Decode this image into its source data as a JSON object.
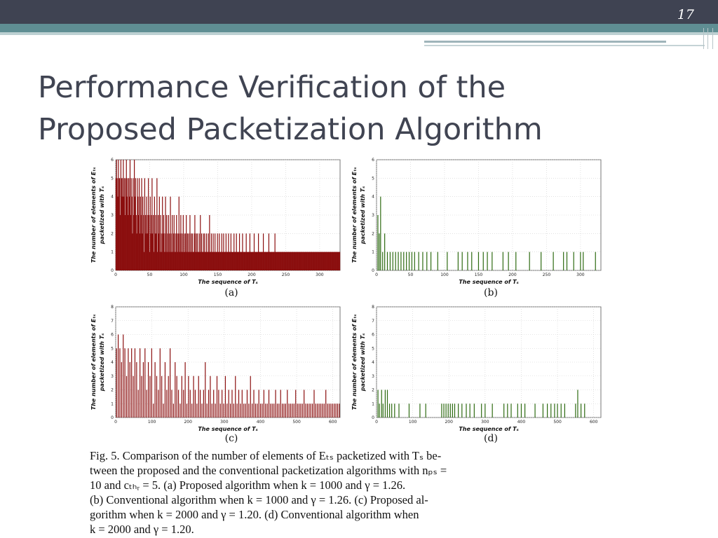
{
  "slide": {
    "number": "17",
    "title_line1": "Performance Verification of the",
    "title_line2": "Proposed Packetization Algorithm"
  },
  "figure": {
    "caption_lines": [
      "Fig. 5.   Comparison of the number of elements of Eₜₛ packetized with Tₛ be-",
      "tween the proposed and the conventional packetization algorithms with nₚₛ =",
      "10 and cₜₕᵣ = 5. (a) Proposed algorithm when k = 1000 and γ = 1.26.",
      "(b) Conventional algorithm when k = 1000 and γ = 1.26. (c) Proposed al-",
      "gorithm when k = 2000 and γ = 1.20. (d) Conventional algorithm when",
      "k = 2000 and γ = 1.20."
    ]
  },
  "chart_data": [
    {
      "type": "bar",
      "panel_label": "(a)",
      "xlabel": "The sequence of Tₛ",
      "ylabel_line1": "The number of elements of Eₜₛ",
      "ylabel_line2": "packetized with Tₛ",
      "xlim": [
        0,
        330
      ],
      "ylim": [
        0,
        6
      ],
      "xticks": [
        0,
        50,
        100,
        150,
        200,
        250,
        300
      ],
      "yticks": [
        0,
        1,
        2,
        3,
        4,
        5,
        6
      ],
      "grid": true,
      "color": "#8b0f0f",
      "values": [
        5,
        6,
        5,
        4,
        6,
        5,
        5,
        3,
        6,
        5,
        4,
        5,
        6,
        4,
        5,
        3,
        5,
        6,
        4,
        5,
        3,
        5,
        4,
        6,
        3,
        5,
        4,
        2,
        5,
        3,
        6,
        4,
        5,
        3,
        2,
        5,
        4,
        3,
        5,
        2,
        4,
        3,
        5,
        2,
        4,
        3,
        1,
        5,
        3,
        2,
        4,
        3,
        2,
        5,
        3,
        1,
        4,
        2,
        3,
        5,
        2,
        3,
        1,
        4,
        2,
        3,
        2,
        5,
        1,
        3,
        2,
        4,
        1,
        3,
        2,
        1,
        4,
        2,
        3,
        1,
        2,
        4,
        1,
        3,
        2,
        1,
        3,
        2,
        1,
        4,
        2,
        1,
        3,
        1,
        2,
        3,
        1,
        2,
        1,
        3,
        2,
        1,
        2,
        4,
        1,
        2,
        3,
        1,
        2,
        1,
        3,
        1,
        2,
        1,
        2,
        3,
        1,
        2,
        1,
        2,
        1,
        3,
        1,
        2,
        1,
        2,
        1,
        1,
        2,
        3,
        1,
        2,
        1,
        2,
        1,
        1,
        2,
        1,
        3,
        1,
        2,
        1,
        1,
        2,
        1,
        2,
        1,
        1,
        2,
        1,
        1,
        2,
        1,
        3,
        1,
        1,
        2,
        1,
        1,
        2,
        1,
        1,
        2,
        1,
        1,
        1,
        2,
        1,
        1,
        2,
        1,
        1,
        1,
        2,
        1,
        1,
        2,
        1,
        1,
        1,
        2,
        1,
        1,
        1,
        2,
        1,
        1,
        1,
        2,
        1,
        1,
        1,
        1,
        2,
        1,
        1,
        1,
        2,
        1,
        1,
        1,
        1,
        2,
        1,
        1,
        1,
        1,
        2,
        1,
        1,
        1,
        1,
        1,
        2,
        1,
        1,
        1,
        1,
        1,
        2,
        1,
        1,
        1,
        1,
        1,
        1,
        2,
        1,
        1,
        1,
        1,
        1,
        1,
        2,
        1,
        1,
        1,
        1,
        1,
        1,
        1,
        2,
        1,
        1,
        1,
        1,
        1,
        1,
        1,
        1,
        2,
        1,
        1,
        1,
        1,
        1,
        1,
        1,
        1,
        1,
        2,
        1,
        1,
        1,
        1,
        1,
        1,
        1,
        1,
        1,
        1,
        1,
        1,
        1,
        1,
        1,
        1,
        1,
        1,
        1,
        1,
        1,
        1,
        1,
        1,
        1,
        1,
        1,
        1,
        1,
        1,
        1,
        1,
        1,
        1,
        1,
        1,
        1,
        1,
        1,
        1,
        1,
        1,
        1,
        1,
        1,
        1,
        1,
        1,
        1,
        1,
        1,
        1,
        1,
        1,
        1,
        1,
        1,
        1,
        1,
        1,
        1,
        1,
        1,
        1,
        1,
        1,
        1,
        1,
        1,
        1,
        1,
        1,
        1,
        1,
        1,
        1,
        1,
        1,
        1,
        1,
        1,
        1,
        1,
        1,
        1,
        1,
        1,
        1,
        1,
        1,
        1,
        1,
        1,
        1,
        1,
        1,
        1,
        1,
        1,
        1,
        1,
        1,
        1,
        1,
        1,
        1
      ]
    },
    {
      "type": "bar",
      "panel_label": "(b)",
      "xlabel": "The sequence of Tₛ",
      "ylabel_line1": "The number of elements of Eₜₛ",
      "ylabel_line2": "packetized with Tₛ",
      "xlim": [
        0,
        330
      ],
      "ylim": [
        0,
        6
      ],
      "xticks": [
        0,
        50,
        100,
        150,
        200,
        250,
        300
      ],
      "yticks": [
        0,
        1,
        2,
        3,
        4,
        5,
        6
      ],
      "grid": true,
      "color": "#2e6b12",
      "points": [
        [
          2,
          3
        ],
        [
          4,
          2
        ],
        [
          6,
          4
        ],
        [
          9,
          1
        ],
        [
          12,
          2
        ],
        [
          16,
          1
        ],
        [
          20,
          1
        ],
        [
          24,
          1
        ],
        [
          28,
          1
        ],
        [
          32,
          1
        ],
        [
          36,
          1
        ],
        [
          40,
          1
        ],
        [
          44,
          1
        ],
        [
          48,
          1
        ],
        [
          52,
          1
        ],
        [
          56,
          1
        ],
        [
          62,
          1
        ],
        [
          68,
          1
        ],
        [
          74,
          1
        ],
        [
          80,
          1
        ],
        [
          90,
          1
        ],
        [
          104,
          1
        ],
        [
          120,
          1
        ],
        [
          126,
          1
        ],
        [
          134,
          1
        ],
        [
          140,
          1
        ],
        [
          150,
          1
        ],
        [
          157,
          1
        ],
        [
          163,
          1
        ],
        [
          170,
          1
        ],
        [
          186,
          1
        ],
        [
          194,
          1
        ],
        [
          205,
          1
        ],
        [
          225,
          1
        ],
        [
          242,
          1
        ],
        [
          260,
          1
        ],
        [
          275,
          1
        ],
        [
          280,
          1
        ],
        [
          290,
          1
        ],
        [
          300,
          1
        ],
        [
          304,
          1
        ],
        [
          322,
          1
        ]
      ]
    },
    {
      "type": "bar",
      "panel_label": "(c)",
      "xlabel": "The sequence of Tₛ",
      "ylabel_line1": "The number of elements of Eₜₛ",
      "ylabel_line2": "packetized with Tₛ",
      "xlim": [
        0,
        620
      ],
      "ylim": [
        0,
        8
      ],
      "xticks": [
        0,
        100,
        200,
        300,
        400,
        500,
        600
      ],
      "yticks": [
        0,
        1,
        2,
        3,
        4,
        5,
        6,
        7,
        8
      ],
      "grid": true,
      "color": "#8b0f0f",
      "values": [
        5,
        6,
        5,
        4,
        6,
        5,
        3,
        5,
        4,
        5,
        3,
        5,
        4,
        2,
        5,
        3,
        4,
        5,
        2,
        4,
        3,
        5,
        1,
        4,
        3,
        2,
        5,
        3,
        1,
        4,
        2,
        3,
        5,
        2,
        1,
        4,
        3,
        2,
        1,
        3,
        2,
        4,
        1,
        3,
        2,
        1,
        3,
        2,
        1,
        3,
        2,
        1,
        2,
        4,
        1,
        2,
        3,
        1,
        2,
        1,
        3,
        2,
        1,
        2,
        1,
        3,
        1,
        2,
        1,
        2,
        1,
        3,
        1,
        2,
        1,
        2,
        1,
        1,
        2,
        1,
        3,
        1,
        2,
        1,
        1,
        2,
        1,
        1,
        2,
        1,
        1,
        2,
        1,
        1,
        1,
        2,
        1,
        1,
        2,
        1,
        1,
        1,
        2,
        1,
        1,
        1,
        1,
        2,
        1,
        1,
        1,
        1,
        2,
        1,
        1,
        1,
        1,
        1,
        2,
        1,
        1,
        1,
        1,
        1,
        1,
        2,
        1,
        1,
        1,
        1,
        1,
        1,
        1,
        1
      ]
    },
    {
      "type": "bar",
      "panel_label": "(d)",
      "xlabel": "The sequence of Tₛ",
      "ylabel_line1": "The number of elements of Eₜₛ",
      "ylabel_line2": "packetized with Tₛ",
      "xlim": [
        0,
        620
      ],
      "ylim": [
        0,
        8
      ],
      "xticks": [
        0,
        100,
        200,
        300,
        400,
        500,
        600
      ],
      "yticks": [
        0,
        1,
        2,
        3,
        4,
        5,
        6,
        7,
        8
      ],
      "grid": true,
      "color": "#2e6b12",
      "points": [
        [
          4,
          2
        ],
        [
          8,
          1
        ],
        [
          14,
          2
        ],
        [
          18,
          1
        ],
        [
          24,
          2
        ],
        [
          30,
          2
        ],
        [
          36,
          1
        ],
        [
          42,
          1
        ],
        [
          50,
          1
        ],
        [
          62,
          1
        ],
        [
          90,
          1
        ],
        [
          120,
          1
        ],
        [
          136,
          1
        ],
        [
          180,
          1
        ],
        [
          186,
          1
        ],
        [
          192,
          1
        ],
        [
          198,
          1
        ],
        [
          204,
          1
        ],
        [
          210,
          1
        ],
        [
          216,
          1
        ],
        [
          226,
          1
        ],
        [
          236,
          1
        ],
        [
          248,
          1
        ],
        [
          258,
          1
        ],
        [
          270,
          1
        ],
        [
          290,
          1
        ],
        [
          300,
          1
        ],
        [
          320,
          1
        ],
        [
          352,
          1
        ],
        [
          362,
          1
        ],
        [
          372,
          1
        ],
        [
          390,
          1
        ],
        [
          400,
          1
        ],
        [
          410,
          1
        ],
        [
          438,
          1
        ],
        [
          460,
          1
        ],
        [
          472,
          1
        ],
        [
          482,
          1
        ],
        [
          492,
          1
        ],
        [
          500,
          1
        ],
        [
          510,
          1
        ],
        [
          520,
          1
        ],
        [
          550,
          1
        ],
        [
          556,
          2
        ],
        [
          565,
          1
        ],
        [
          575,
          1
        ]
      ]
    }
  ]
}
